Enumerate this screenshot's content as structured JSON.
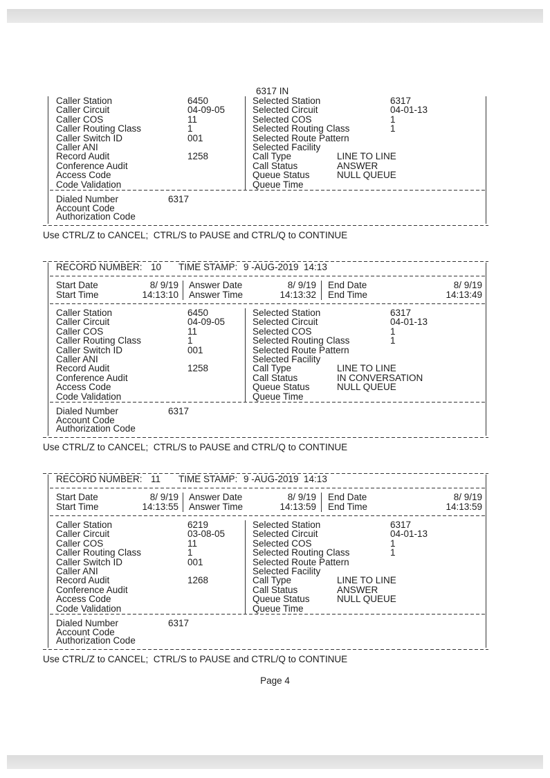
{
  "labels": {
    "caller": [
      "Caller Station",
      "Caller Circuit",
      "Caller COS",
      "Caller Routing Class",
      "Caller Switch ID",
      "Caller ANI",
      "Record Audit",
      "Conference Audit",
      "Access Code",
      "Code Validation"
    ],
    "selected": [
      "Selected Station",
      "Selected Circuit",
      "Selected COS",
      "Selected Routing Class",
      "Selected Route Pattern",
      "Selected Facility",
      "Call Type",
      "Call Status",
      "Queue Status",
      "Queue Time"
    ],
    "record_number": "RECORD NUMBER:",
    "time_stamp": "TIME STAMP:",
    "start_date": "Start Date",
    "start_time": "Start Time",
    "answer_date": "Answer Date",
    "answer_time": "Answer Time",
    "end_date": "End Date",
    "end_time": "End Time",
    "dialed_number": "Dialed Number",
    "account_code": "Account Code",
    "authorization_code": "Authorization Code"
  },
  "top_fragment": {
    "continued_text": "6317 IN",
    "caller": [
      "6450",
      "04-09-05",
      "11",
      "1",
      "001",
      "",
      "1258",
      "",
      "",
      ""
    ],
    "selected": [
      "6317",
      "04-01-13",
      "1",
      "1",
      "",
      "",
      "LINE TO LINE",
      "ANSWER",
      "NULL QUEUE",
      ""
    ],
    "dialed_number": "6317",
    "account_code": "",
    "authorization_code": ""
  },
  "records": [
    {
      "record_number": "10",
      "time_stamp": "9 -AUG-2019  14:13",
      "start_date": "8/ 9/19",
      "answer_date": "8/ 9/19",
      "end_date": "8/ 9/19",
      "start_time": "14:13:10",
      "answer_time": "14:13:32",
      "end_time": "14:13:49",
      "caller": [
        "6450",
        "04-09-05",
        "11",
        "1",
        "001",
        "",
        "1258",
        "",
        "",
        ""
      ],
      "selected": [
        "6317",
        "04-01-13",
        "1",
        "1",
        "",
        "",
        "LINE TO LINE",
        "IN CONVERSATION",
        "NULL QUEUE",
        ""
      ],
      "dialed_number": "6317",
      "account_code": "",
      "authorization_code": ""
    },
    {
      "record_number": "11",
      "time_stamp": "9 -AUG-2019  14:13",
      "start_date": "8/ 9/19",
      "answer_date": "8/ 9/19",
      "end_date": "8/ 9/19",
      "start_time": "14:13:55",
      "answer_time": "14:13:59",
      "end_time": "14:13:59",
      "caller": [
        "6219",
        "03-08-05",
        "11",
        "1",
        "001",
        "",
        "1268",
        "",
        "",
        ""
      ],
      "selected": [
        "6317",
        "04-01-13",
        "1",
        "1",
        "",
        "",
        "LINE TO LINE",
        "ANSWER",
        "NULL QUEUE",
        ""
      ],
      "dialed_number": "6317",
      "account_code": "",
      "authorization_code": ""
    }
  ],
  "control_hint": "Use CTRL/Z to CANCEL;  CTRL/S to PAUSE and CTRL/Q to CONTINUE",
  "footer": {
    "page": "Page 4"
  }
}
